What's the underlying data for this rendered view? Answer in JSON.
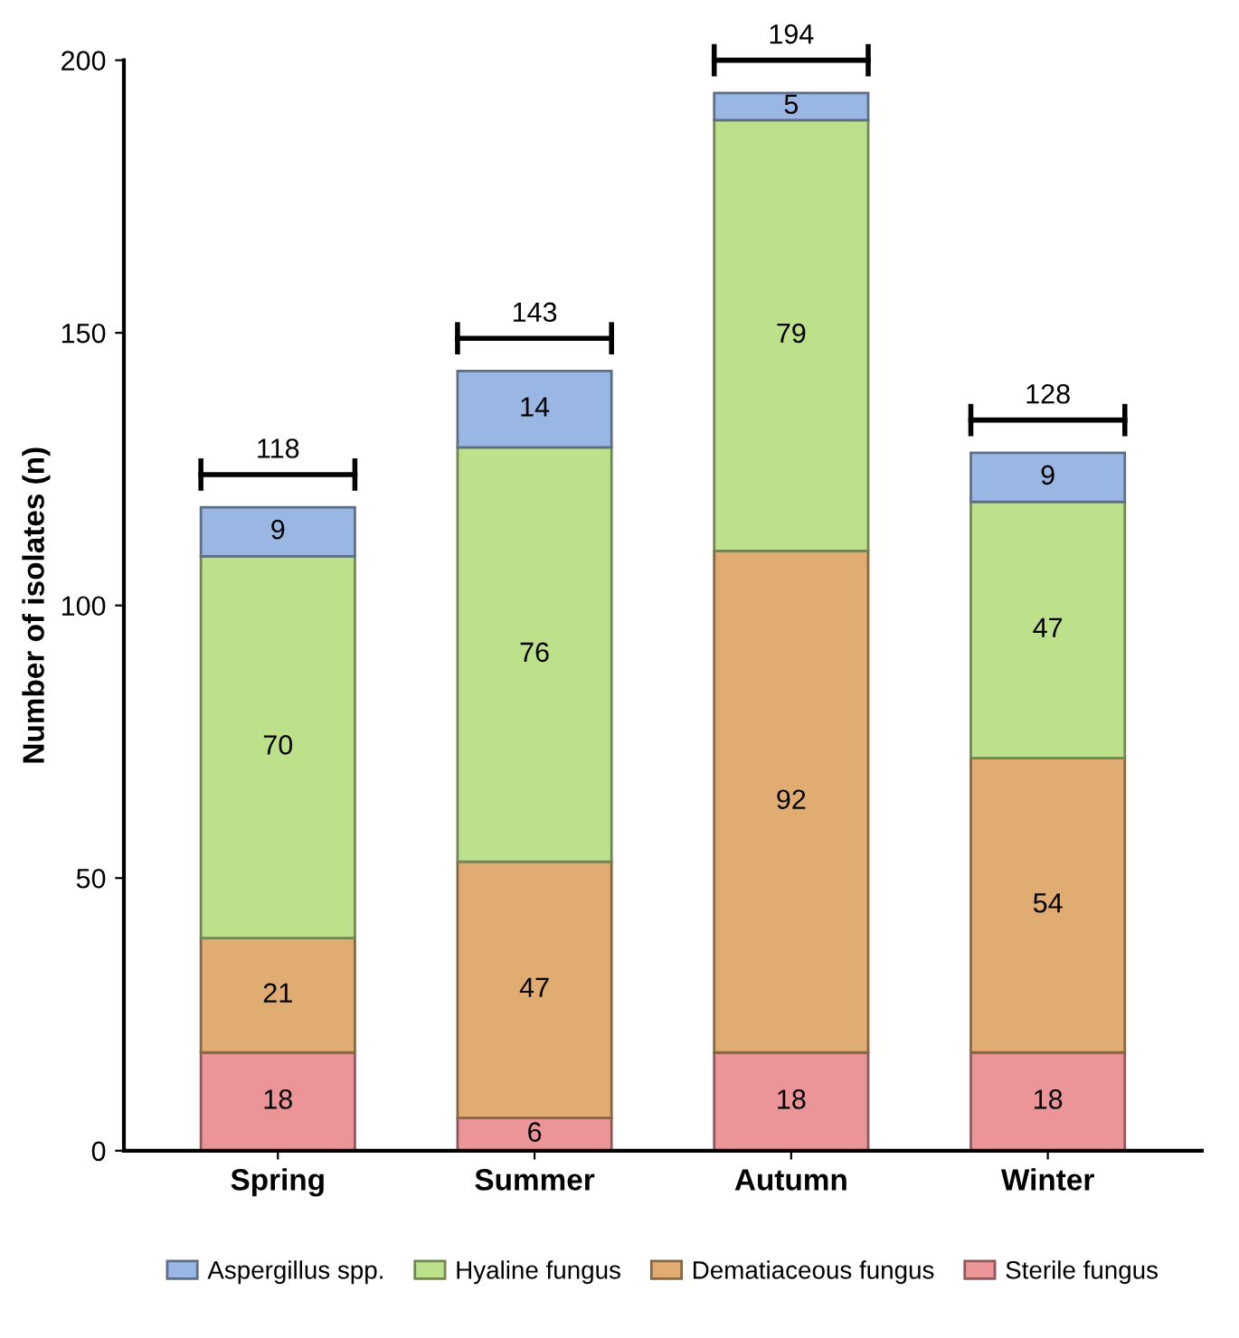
{
  "chart_data": {
    "type": "bar",
    "stacked": true,
    "ylabel": "Number of isolates (n)",
    "categories": [
      "Spring",
      "Summer",
      "Autumn",
      "Winter"
    ],
    "series": [
      {
        "name": "Sterile fungus",
        "color": "#eb9599",
        "values": [
          18,
          6,
          18,
          18
        ]
      },
      {
        "name": "Dematiaceous fungus",
        "color": "#e0ac72",
        "values": [
          21,
          47,
          92,
          54
        ]
      },
      {
        "name": "Hyaline fungus",
        "color": "#bde08a",
        "values": [
          70,
          76,
          79,
          47
        ]
      },
      {
        "name": "Aspergillus spp.",
        "color": "#9ab7e3",
        "values": [
          9,
          14,
          5,
          9
        ]
      }
    ],
    "totals": [
      "118",
      "143",
      "194",
      "128"
    ],
    "ylim": [
      0,
      200
    ],
    "yticks": [
      0,
      50,
      100,
      150,
      200
    ],
    "grid": false,
    "data_labels": true,
    "legend": "bottom"
  }
}
